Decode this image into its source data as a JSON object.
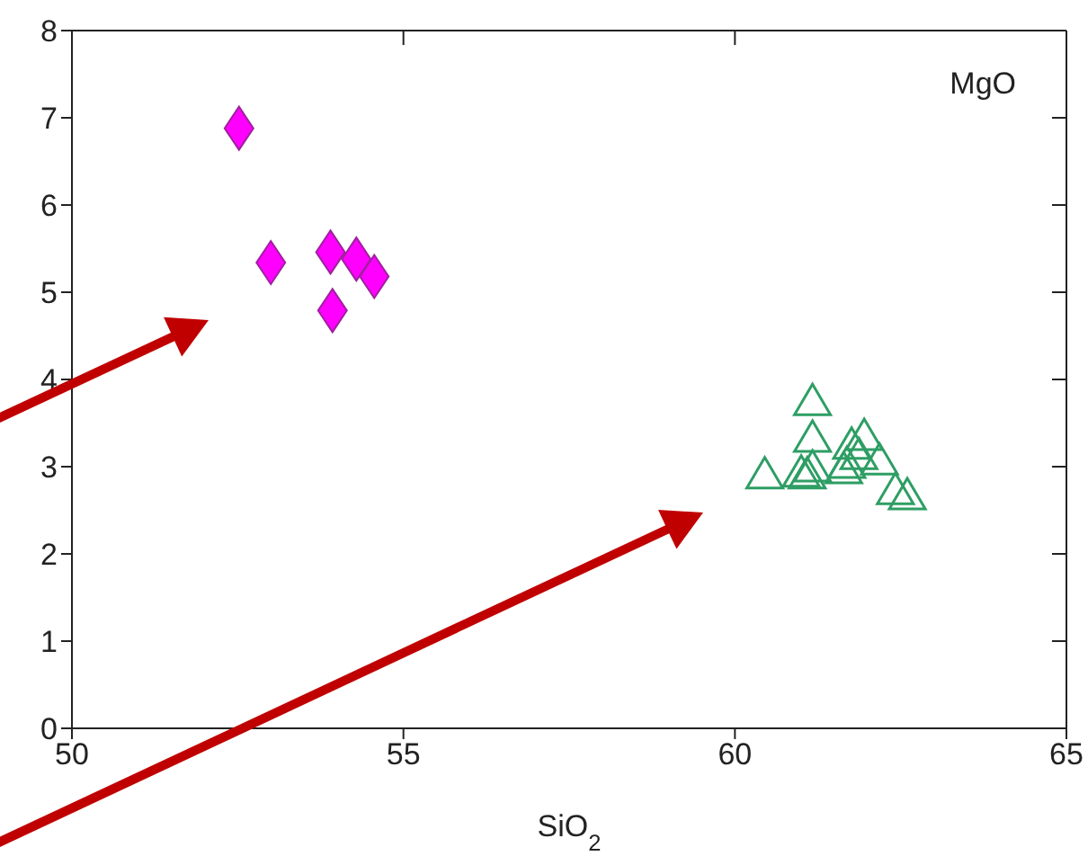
{
  "chart_data": {
    "type": "scatter",
    "xlabel": "SiO$_{2}$",
    "ylabel": "MgO",
    "xlim": [
      50,
      65
    ],
    "xticks": [
      50,
      55,
      60,
      65
    ],
    "ylim": [
      0,
      8
    ],
    "yticks": [
      0,
      1,
      2,
      3,
      4,
      5,
      6,
      7,
      8
    ],
    "series": [
      {
        "color": "#ff00ff",
        "marker": "diamond",
        "x": [
          52.52,
          53.0,
          53.9,
          53.93,
          54.29,
          54.56
        ],
        "values": [
          6.88,
          5.34,
          5.46,
          4.79,
          5.38,
          5.18
        ]
      },
      {
        "color": "#2e9e64",
        "marker": "triangle",
        "x": [
          61.17,
          61.17,
          60.45,
          61.0,
          61.09,
          61.17,
          61.69,
          61.76,
          61.95,
          61.87,
          62.18,
          62.42,
          62.6,
          61.64
        ],
        "values": [
          3.74,
          3.32,
          2.9,
          2.92,
          2.9,
          2.98,
          3.02,
          3.24,
          3.34,
          3.12,
          3.06,
          2.72,
          2.66,
          2.96
        ]
      }
    ]
  }
}
